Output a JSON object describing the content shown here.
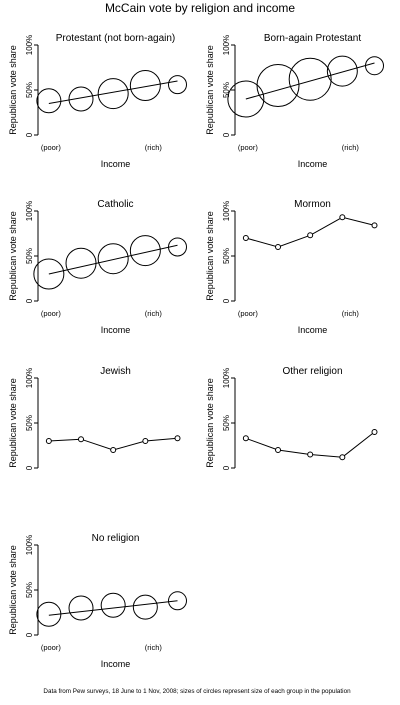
{
  "title": "McCain vote by religion and income",
  "footnote": "Data from Pew surveys, 18 June to 1 Nov, 2008; sizes of circles represent size of each group in the population",
  "chart_data": [
    {
      "type": "scatter",
      "title": "Protestant (not born-again)",
      "xlabel": "Income",
      "ylabel": "Republican vote share",
      "x_tick_labels": [
        "(poor)",
        "(rich)"
      ],
      "y_tick_labels": [
        "0",
        "50%",
        "100%"
      ],
      "ylim": [
        0,
        100
      ],
      "categories": [
        1,
        2,
        3,
        4,
        5
      ],
      "values": [
        38,
        40,
        46,
        55,
        56
      ],
      "circle_size": [
        2,
        2,
        2.5,
        2.5,
        1.5
      ],
      "trend": [
        35,
        60
      ]
    },
    {
      "type": "scatter",
      "title": "Born-again Protestant",
      "xlabel": "Income",
      "ylabel": "Republican vote share",
      "x_tick_labels": [
        "(poor)",
        "(rich)"
      ],
      "y_tick_labels": [
        "0",
        "50%",
        "100%"
      ],
      "ylim": [
        0,
        100
      ],
      "categories": [
        1,
        2,
        3,
        4,
        5
      ],
      "values": [
        40,
        55,
        62,
        71,
        77
      ],
      "circle_size": [
        3,
        3.5,
        3.5,
        2.5,
        1.5
      ],
      "trend": [
        40,
        80
      ]
    },
    {
      "type": "scatter",
      "title": "Catholic",
      "xlabel": "Income",
      "ylabel": "Republican vote share",
      "x_tick_labels": [
        "(poor)",
        "(rich)"
      ],
      "y_tick_labels": [
        "0",
        "50%",
        "100%"
      ],
      "ylim": [
        0,
        100
      ],
      "categories": [
        1,
        2,
        3,
        4,
        5
      ],
      "values": [
        30,
        42,
        47,
        56,
        60
      ],
      "circle_size": [
        2.5,
        2.5,
        2.5,
        2.5,
        1.5
      ],
      "trend": [
        30,
        62
      ]
    },
    {
      "type": "line",
      "title": "Mormon",
      "xlabel": "Income",
      "ylabel": "Republican vote share",
      "x_tick_labels": [
        "(poor)",
        "(rich)"
      ],
      "y_tick_labels": [
        "0",
        "50%",
        "100%"
      ],
      "ylim": [
        0,
        100
      ],
      "categories": [
        1,
        2,
        3,
        4,
        5
      ],
      "values": [
        70,
        60,
        73,
        93,
        84
      ]
    },
    {
      "type": "line",
      "title": "Jewish",
      "xlabel": "",
      "ylabel": "Republican vote share",
      "x_tick_labels": [],
      "y_tick_labels": [
        "0",
        "50%",
        "100%"
      ],
      "ylim": [
        0,
        100
      ],
      "categories": [
        1,
        2,
        3,
        4,
        5
      ],
      "values": [
        30,
        32,
        20,
        30,
        33
      ]
    },
    {
      "type": "line",
      "title": "Other religion",
      "xlabel": "",
      "ylabel": "Republican vote share",
      "x_tick_labels": [],
      "y_tick_labels": [
        "0",
        "50%",
        "100%"
      ],
      "ylim": [
        0,
        100
      ],
      "categories": [
        1,
        2,
        3,
        4,
        5
      ],
      "values": [
        33,
        20,
        15,
        12,
        40
      ]
    },
    {
      "type": "scatter",
      "title": "No religion",
      "xlabel": "Income",
      "ylabel": "Republican vote share",
      "x_tick_labels": [
        "(poor)",
        "(rich)"
      ],
      "y_tick_labels": [
        "0",
        "50%",
        "100%"
      ],
      "ylim": [
        0,
        100
      ],
      "categories": [
        1,
        2,
        3,
        4,
        5
      ],
      "values": [
        23,
        30,
        33,
        31,
        38
      ],
      "circle_size": [
        2,
        2,
        2,
        2,
        1.5
      ],
      "trend": [
        22,
        38
      ]
    }
  ]
}
